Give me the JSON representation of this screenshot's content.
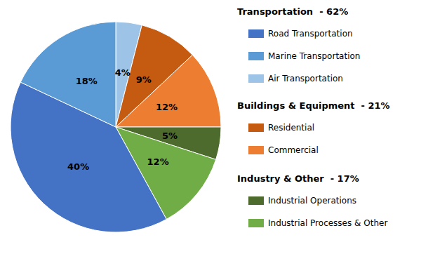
{
  "chart_data": {
    "type": "pie",
    "categories": [
      "Air Transportation",
      "Residential",
      "Commercial",
      "Industrial Operations",
      "Industrial Processes & Other",
      "Road Transportation",
      "Marine Transportation"
    ],
    "values": [
      4,
      9,
      12,
      5,
      12,
      40,
      18
    ],
    "value_labels": [
      "4%",
      "9%",
      "12%",
      "5%",
      "12%",
      "40%",
      "18%"
    ],
    "colors": [
      "#9DC3E6",
      "#C55A11",
      "#ED7D31",
      "#4E6B2E",
      "#70AD47",
      "#4472C4",
      "#5B9BD5"
    ],
    "data_labels": true,
    "legend": "right",
    "legend_groups": [
      {
        "header": "Transportation  - 62%",
        "items": [
          "Road Transportation",
          "Marine Transportation",
          "Air Transportation"
        ]
      },
      {
        "header": "Buildings & Equipment  - 21%",
        "items": [
          "Residential",
          "Commercial"
        ]
      },
      {
        "header": "Industry & Other  - 17%",
        "items": [
          "Industrial Operations",
          "Industrial Processes & Other"
        ]
      }
    ]
  }
}
